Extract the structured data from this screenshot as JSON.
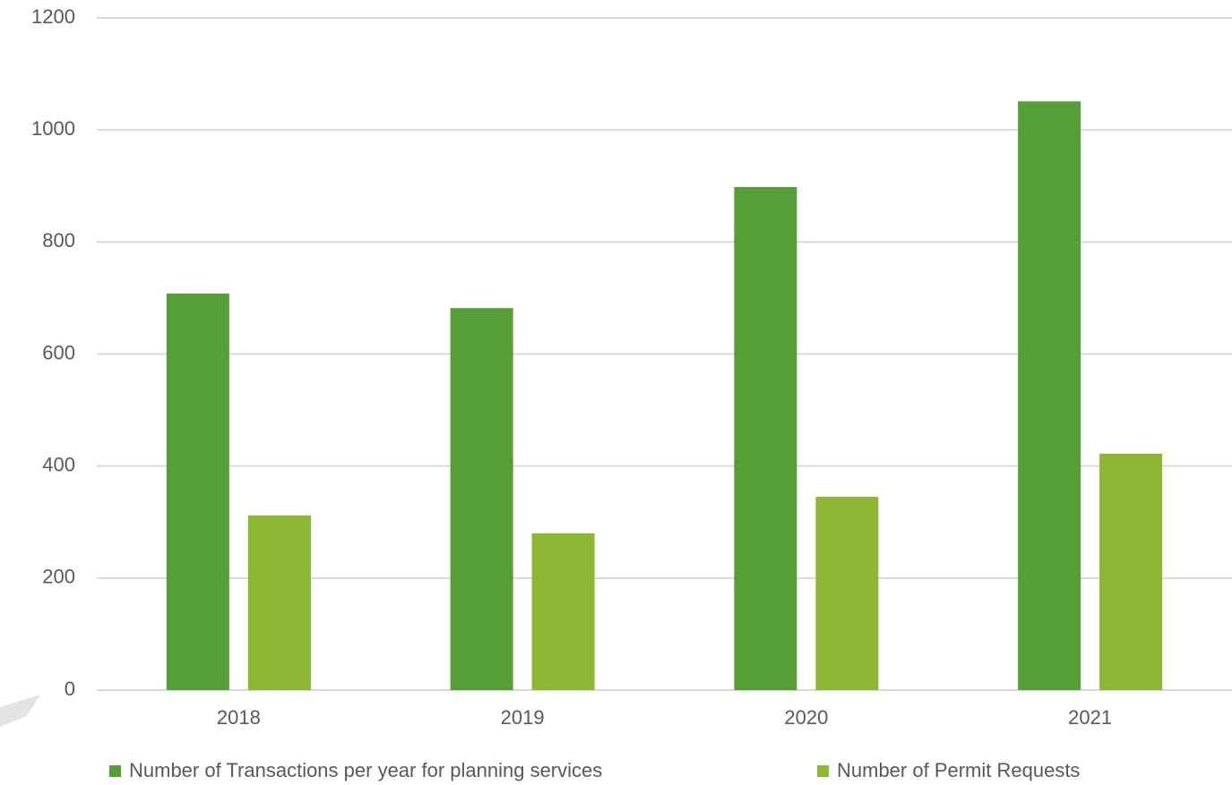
{
  "chart_data": {
    "type": "bar",
    "categories": [
      "2018",
      "2019",
      "2020",
      "2021"
    ],
    "series": [
      {
        "name": "Number of Transactions per year for planning services",
        "color": "#559e38",
        "values": [
          708,
          682,
          898,
          1051
        ]
      },
      {
        "name": "Number of Permit Requests",
        "color": "#8db733",
        "values": [
          312,
          280,
          345,
          422
        ]
      }
    ],
    "ylim": [
      0,
      1200
    ],
    "yticks": [
      0,
      200,
      400,
      600,
      800,
      1000,
      1200
    ],
    "grid": true,
    "legend": "bottom"
  }
}
